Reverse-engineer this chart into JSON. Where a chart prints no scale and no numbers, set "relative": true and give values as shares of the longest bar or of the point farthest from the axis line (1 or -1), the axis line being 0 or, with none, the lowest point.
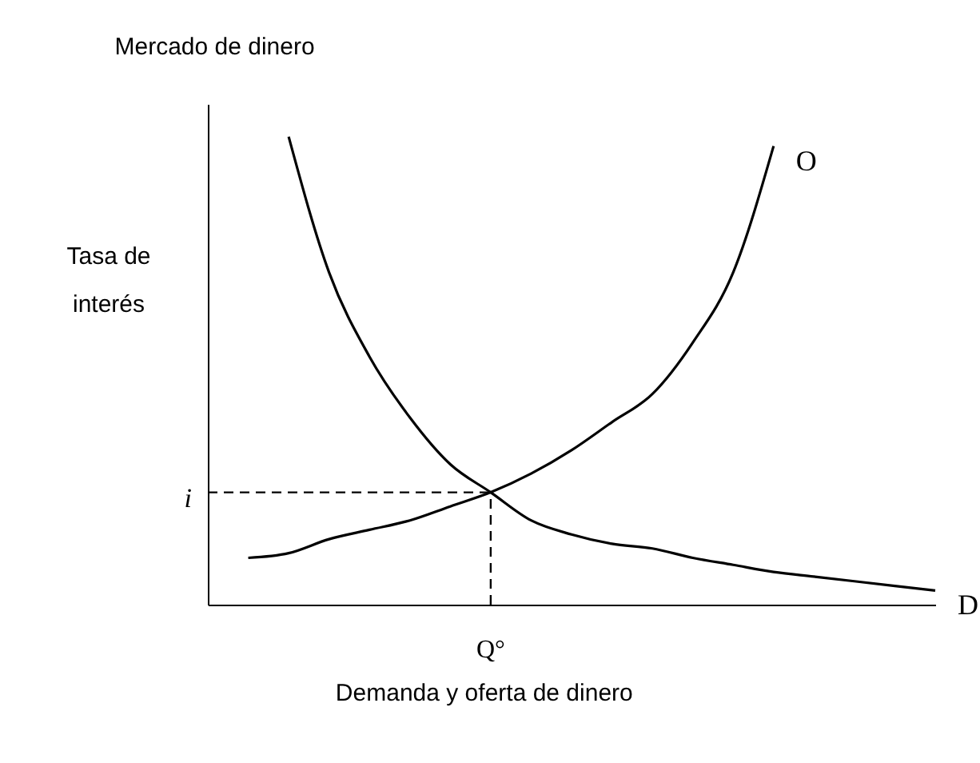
{
  "chart_data": {
    "type": "line",
    "title": "Mercado de dinero",
    "xlabel": "Demanda y oferta de dinero",
    "ylabel": "Tasa de\ninterés",
    "relative": true,
    "line_style": "solid",
    "categories": [
      null,
      null,
      null,
      null,
      null,
      null,
      null,
      null,
      null,
      null,
      null,
      null,
      null,
      null,
      null,
      null,
      null,
      null,
      null
    ],
    "annotations": [
      "Q°"
    ],
    "series": [
      {
        "name": "D",
        "color": "#000000",
        "values": [
          null,
          null,
          1.0,
          0.71,
          0.53,
          0.4,
          0.3,
          0.24,
          0.18,
          0.15,
          0.13,
          0.12,
          0.1,
          0.085,
          0.07,
          0.06,
          0.05,
          0.04,
          0.03
        ]
      },
      {
        "name": "O",
        "color": "#000000",
        "values": [
          null,
          0.1,
          0.11,
          0.14,
          0.16,
          0.18,
          0.21,
          0.24,
          0.28,
          0.33,
          0.39,
          0.45,
          0.56,
          0.71,
          0.98,
          null,
          null,
          null,
          null
        ]
      }
    ],
    "ref_lines": [
      {
        "axis": "y",
        "value": 0.24,
        "label": "i",
        "line_style": "dashed",
        "color": "#000000"
      }
    ]
  }
}
